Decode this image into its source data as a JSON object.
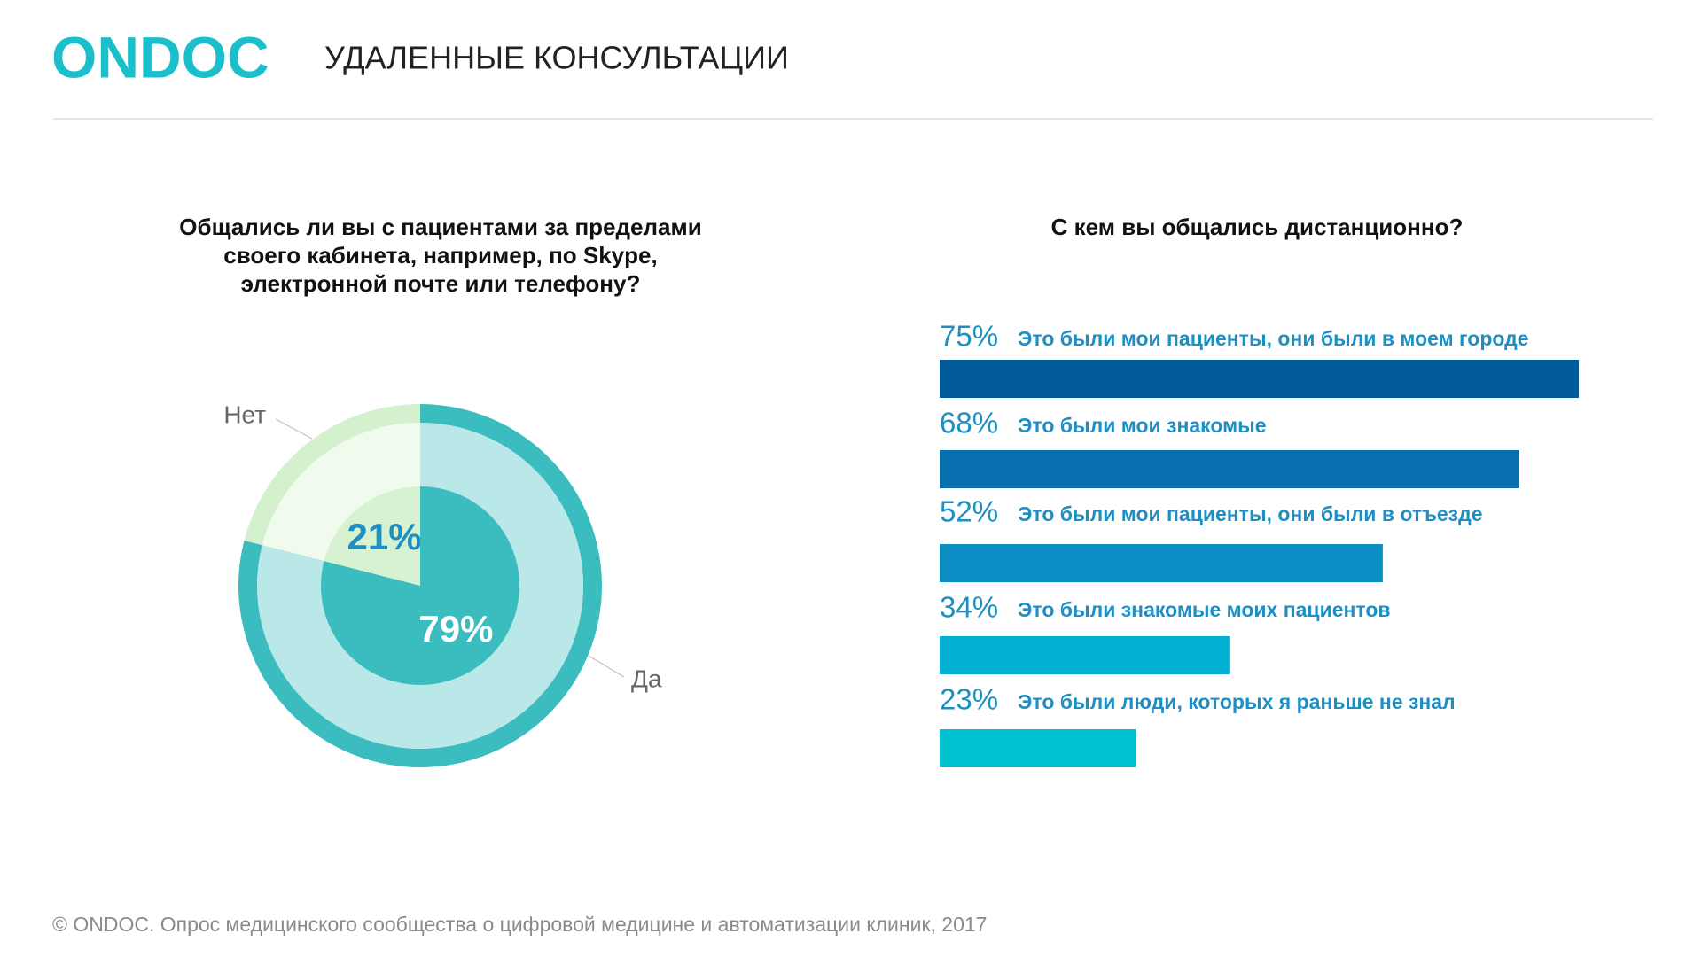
{
  "header": {
    "logo": "ONDOC",
    "title": "УДАЛЕННЫЕ КОНСУЛЬТАЦИИ"
  },
  "chart_data": [
    {
      "type": "pie",
      "title": [
        "Общались ли вы с пациентами за пределами",
        "своего кабинета, например, по Skype,",
        "электронной почте или телефону?"
      ],
      "categories": [
        "Нет",
        "Да"
      ],
      "values": [
        21,
        79
      ],
      "value_labels": [
        "21%",
        "79%"
      ],
      "colors": [
        "#d3f1cc",
        "#3bbdc0"
      ]
    },
    {
      "type": "hbar",
      "title": [
        "С кем вы общались дистанционно?"
      ],
      "categories": [
        "Это были мои пациенты, они были в моем городе",
        "Это были мои знакомые",
        "Это были мои пациенты, они были в отъезде",
        "Это были знакомые моих пациентов",
        "Это были люди, которых я раньше не знал"
      ],
      "values": [
        75,
        68,
        52,
        34,
        23
      ],
      "value_labels": [
        "75%",
        "68%",
        "52%",
        "34%",
        "23%"
      ],
      "colors": [
        "#005a9c",
        "#0a6fae",
        "#0b8ec4",
        "#03aed3",
        "#00c1d0"
      ]
    }
  ],
  "footer": "© ONDOC. Опрос медицинского сообщества о цифровой медицине и автоматизации клиник, 2017"
}
